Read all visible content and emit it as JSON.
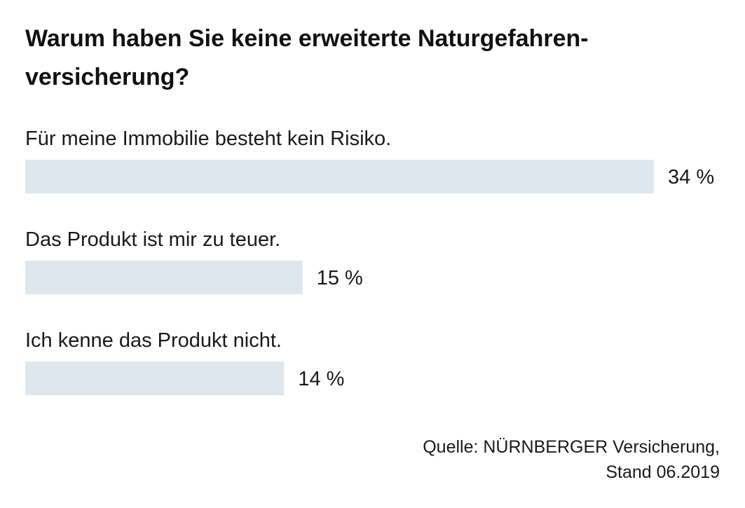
{
  "title": "Warum haben Sie keine erweiterte Naturgefahren-versicherung?",
  "title_line1": "Warum haben Sie keine erweiterte Naturgefahren-",
  "title_line2": "versicherung?",
  "source": {
    "line1": "Quelle: NÜRNBERGER Versicherung,",
    "line2": "Stand 06.2019"
  },
  "colors": {
    "bar": "#dfe7ee",
    "text": "#1a1a1a"
  },
  "chart_data": {
    "type": "bar",
    "orientation": "horizontal",
    "categories": [
      "Für meine Immobilie besteht kein Risiko.",
      "Das Produkt ist mir zu teuer.",
      "Ich kenne das Produkt nicht."
    ],
    "values": [
      34,
      15,
      14
    ],
    "value_labels": [
      "34 %",
      "15 %",
      "14 %"
    ],
    "unit": "%",
    "grid": false,
    "legend": "none"
  }
}
